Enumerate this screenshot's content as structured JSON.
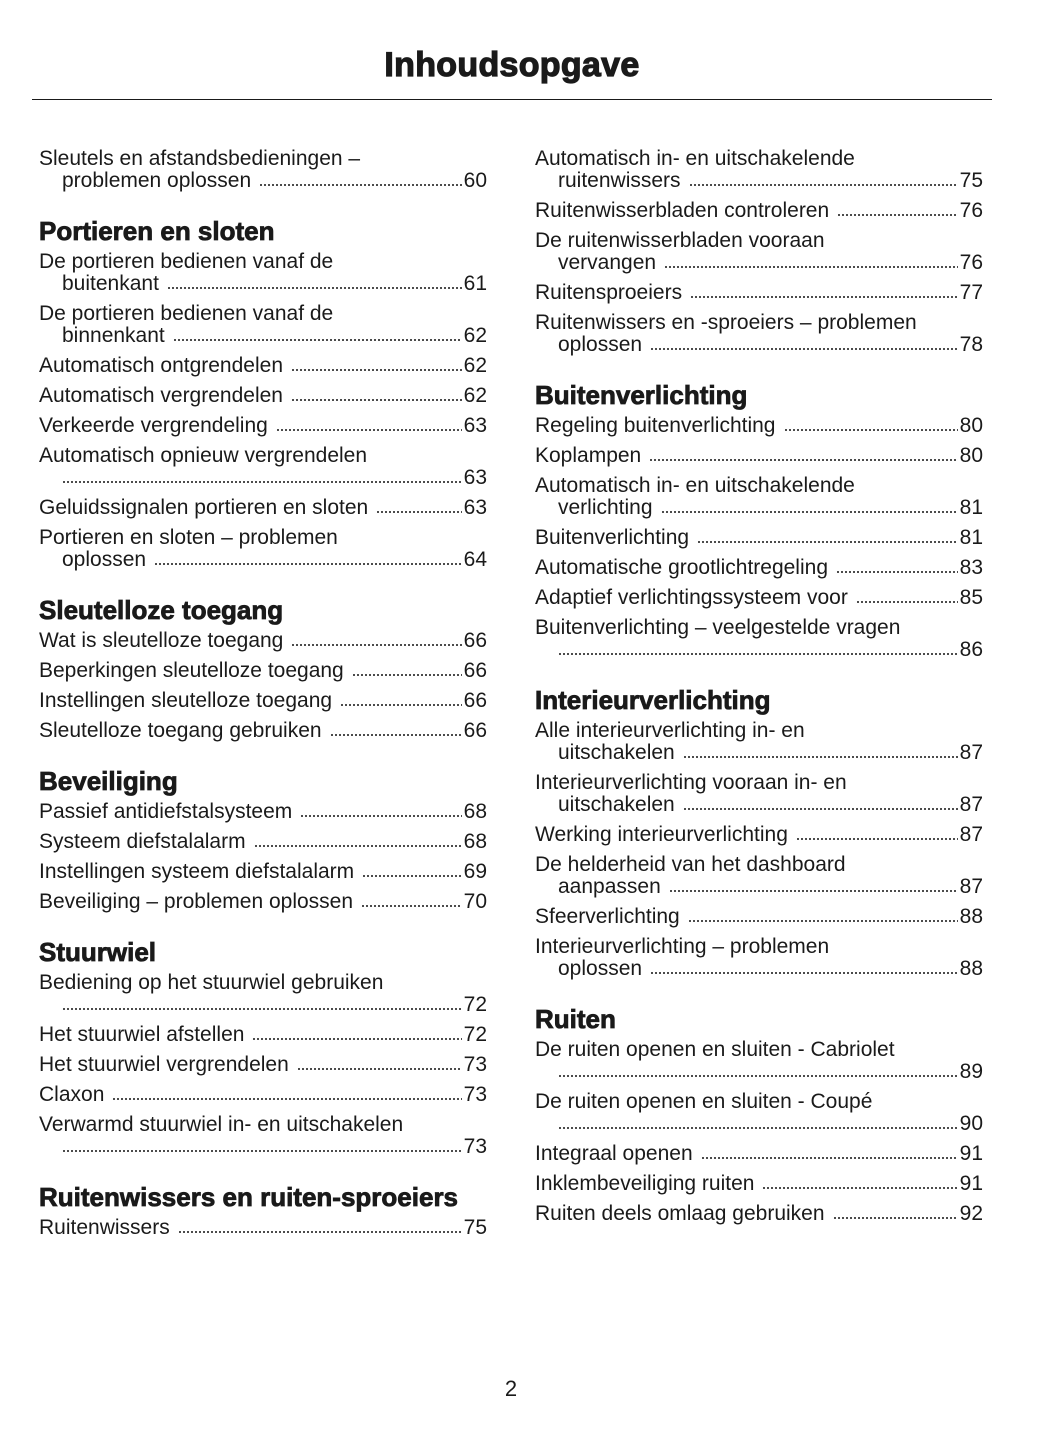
{
  "title": "Inhoudsopgave",
  "page_number": "2",
  "columns": [
    [
      {
        "heading": "",
        "entries": [
          {
            "text": "Sleutels en afstandsbedieningen –",
            "cont": "problemen oplossen",
            "page": "60"
          }
        ]
      },
      {
        "heading": "Portieren en sloten",
        "entries": [
          {
            "text": "De portieren bedienen vanaf de",
            "cont": "buitenkant",
            "page": "61"
          },
          {
            "text": "De portieren bedienen vanaf de",
            "cont": "binnenkant",
            "page": "62"
          },
          {
            "text": "Automatisch ontgrendelen",
            "page": "62"
          },
          {
            "text": "Automatisch vergrendelen",
            "page": "62"
          },
          {
            "text": "Verkeerde vergrendeling",
            "page": "63"
          },
          {
            "text": "Automatisch opnieuw vergrendelen",
            "cont": "",
            "page": "63"
          },
          {
            "text": "Geluidssignalen portieren en sloten",
            "page": "63"
          },
          {
            "text": "Portieren en sloten – problemen",
            "cont": "oplossen",
            "page": "64"
          }
        ]
      },
      {
        "heading": "Sleutelloze toegang",
        "entries": [
          {
            "text": "Wat is sleutelloze toegang",
            "page": "66"
          },
          {
            "text": "Beperkingen sleutelloze toegang",
            "page": "66"
          },
          {
            "text": "Instellingen sleutelloze toegang",
            "page": "66"
          },
          {
            "text": "Sleutelloze toegang gebruiken",
            "page": "66"
          }
        ]
      },
      {
        "heading": "Beveiliging",
        "entries": [
          {
            "text": "Passief antidiefstalsysteem",
            "page": "68"
          },
          {
            "text": "Systeem diefstalalarm",
            "page": "68"
          },
          {
            "text": "Instellingen systeem diefstalalarm",
            "page": "69"
          },
          {
            "text": "Beveiliging – problemen oplossen",
            "page": "70"
          }
        ]
      },
      {
        "heading": "Stuurwiel",
        "entries": [
          {
            "text": "Bediening op het stuurwiel gebruiken",
            "cont": "",
            "page": "72"
          },
          {
            "text": "Het stuurwiel afstellen",
            "page": "72"
          },
          {
            "text": "Het stuurwiel vergrendelen",
            "page": "73"
          },
          {
            "text": "Claxon",
            "page": "73"
          },
          {
            "text": "Verwarmd stuurwiel in- en uitschakelen",
            "cont": "",
            "page": "73"
          }
        ]
      },
      {
        "heading": "Ruitenwissers en ruiten-sproeiers",
        "entries": [
          {
            "text": "Ruitenwissers",
            "page": "75"
          }
        ]
      }
    ],
    [
      {
        "heading": "",
        "entries": [
          {
            "text": "Automatisch in- en uitschakelende",
            "cont": "ruitenwissers",
            "page": "75"
          },
          {
            "text": "Ruitenwisserbladen controleren",
            "page": "76"
          },
          {
            "text": "De ruitenwisserbladen vooraan",
            "cont": "vervangen",
            "page": "76"
          },
          {
            "text": "Ruitensproeiers",
            "page": "77"
          },
          {
            "text": "Ruitenwissers en -sproeiers – problemen",
            "cont": "oplossen",
            "page": "78"
          }
        ]
      },
      {
        "heading": "Buitenverlichting",
        "entries": [
          {
            "text": "Regeling buitenverlichting",
            "page": "80"
          },
          {
            "text": "Koplampen",
            "page": "80"
          },
          {
            "text": "Automatisch in- en uitschakelende",
            "cont": "verlichting",
            "page": "81"
          },
          {
            "text": "Buitenverlichting",
            "page": "81"
          },
          {
            "text": "Automatische grootlichtregeling",
            "page": "83"
          },
          {
            "text": "Adaptief verlichtingssysteem voor",
            "page": "85"
          },
          {
            "text": "Buitenverlichting – veelgestelde vragen",
            "cont": "",
            "page": "86"
          }
        ]
      },
      {
        "heading": "Interieurverlichting",
        "entries": [
          {
            "text": "Alle interieurverlichting in- en",
            "cont": "uitschakelen",
            "page": "87"
          },
          {
            "text": "Interieurverlichting vooraan in- en",
            "cont": "uitschakelen",
            "page": "87"
          },
          {
            "text": "Werking interieurverlichting",
            "page": "87"
          },
          {
            "text": "De helderheid van het dashboard",
            "cont": "aanpassen",
            "page": "87"
          },
          {
            "text": "Sfeerverlichting",
            "page": "88"
          },
          {
            "text": "Interieurverlichting – problemen",
            "cont": "oplossen",
            "page": "88"
          }
        ]
      },
      {
        "heading": "Ruiten",
        "entries": [
          {
            "text": "De ruiten openen en sluiten - Cabriolet",
            "cont": "",
            "page": "89"
          },
          {
            "text": "De ruiten openen en sluiten - Coupé",
            "cont": "",
            "page": "90"
          },
          {
            "text": "Integraal openen",
            "page": "91"
          },
          {
            "text": "Inklembeveiliging ruiten",
            "page": "91"
          },
          {
            "text": "Ruiten deels omlaag gebruiken",
            "page": "92"
          }
        ]
      }
    ]
  ]
}
